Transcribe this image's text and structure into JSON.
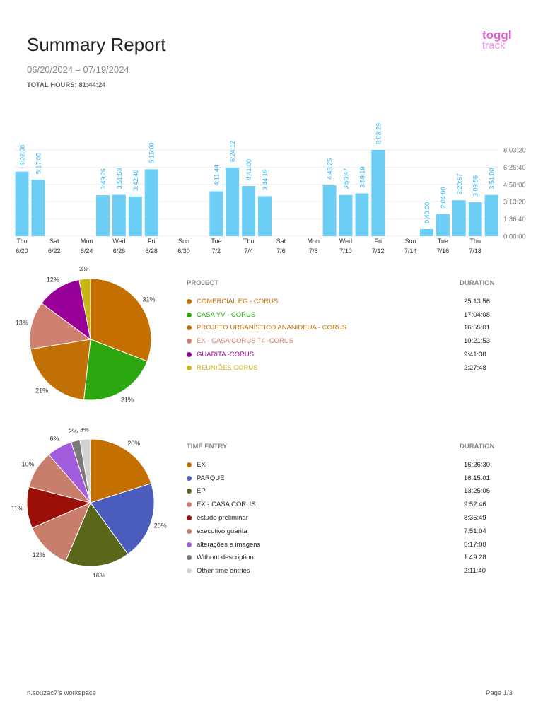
{
  "header": {
    "title": "Summary Report",
    "date_range": "06/20/2024 – 07/19/2024",
    "total_hours": "TOTAL HOURS: 81:44:24",
    "logo": {
      "line1": "toggl",
      "line2": "track"
    }
  },
  "chart_data": [
    {
      "type": "bar",
      "bar_color": "#6ecff6",
      "label_color": "#29b6f6",
      "x": [
        "6/20",
        "6/21",
        "6/22",
        "6/23",
        "6/24",
        "6/25",
        "6/26",
        "6/27",
        "6/28",
        "6/29",
        "6/30",
        "7/1",
        "7/2",
        "7/3",
        "7/4",
        "7/5",
        "7/6",
        "7/7",
        "7/8",
        "7/9",
        "7/10",
        "7/11",
        "7/12",
        "7/13",
        "7/14",
        "7/15",
        "7/16",
        "7/17",
        "7/18",
        "7/19"
      ],
      "values": [
        "6:02:08",
        "5:17:00",
        null,
        null,
        null,
        "3:49:26",
        "3:51:53",
        "3:42:49",
        "6:15:00",
        null,
        null,
        null,
        "4:11:44",
        "6:24:12",
        "4:41:00",
        "3:44:19",
        null,
        null,
        null,
        "4:45:25",
        "3:50:47",
        "3:59:19",
        "8:03:29",
        null,
        null,
        "0:40:00",
        "2:04:00",
        "3:20:57",
        "3:09:56",
        "3:51:00"
      ],
      "x_tick_labels": [
        [
          "Thu",
          "6/20"
        ],
        [
          "Sat",
          "6/22"
        ],
        [
          "Mon",
          "6/24"
        ],
        [
          "Wed",
          "6/26"
        ],
        [
          "Fri",
          "6/28"
        ],
        [
          "Sun",
          "6/30"
        ],
        [
          "Tue",
          "7/2"
        ],
        [
          "Thu",
          "7/4"
        ],
        [
          "Sat",
          "7/6"
        ],
        [
          "Mon",
          "7/8"
        ],
        [
          "Wed",
          "7/10"
        ],
        [
          "Fri",
          "7/12"
        ],
        [
          "Sun",
          "7/14"
        ],
        [
          "Tue",
          "7/16"
        ],
        [
          "Thu",
          "7/18"
        ]
      ],
      "y_ticks": [
        "0:00:00",
        "1:36:40",
        "3:13:20",
        "4:50:00",
        "6:26:40",
        "8:03:20"
      ],
      "ylim": [
        "0:00:00",
        "8:03:20"
      ],
      "grid": true
    },
    {
      "type": "pie",
      "percent_labels": [
        "31%",
        "21%",
        "21%",
        "13%",
        "12%",
        "3%"
      ]
    },
    {
      "type": "pie",
      "percent_labels": [
        "20%",
        "20%",
        "16%",
        "12%",
        "11%",
        "10%",
        "6%",
        "2%",
        "3%"
      ]
    }
  ],
  "projects": {
    "header_name": "PROJECT",
    "header_duration": "DURATION",
    "items": [
      {
        "name": "COMERCIAL EG - CORUS",
        "duration": "25:13:56",
        "color": "#c46f00"
      },
      {
        "name": "CASA YV - CORUS",
        "duration": "17:04:08",
        "color": "#2ca70f"
      },
      {
        "name": "PROJETO URBANÍSTICO ANANIDEUA - CORUS",
        "duration": "16:55:01",
        "color": "#c07005"
      },
      {
        "name": "EX - CASA CORUS T4 -CORUS",
        "duration": "10:21:53",
        "color": "#d0806f"
      },
      {
        "name": "GUARITA -CORUS",
        "duration": "9:41:38",
        "color": "#990099"
      },
      {
        "name": "REUNIÕES CORUS",
        "duration": "2:27:48",
        "color": "#c9b514"
      }
    ]
  },
  "entries": {
    "header_name": "TIME ENTRY",
    "header_duration": "DURATION",
    "items": [
      {
        "name": "EX",
        "duration": "16:26:30",
        "color": "#c47000"
      },
      {
        "name": "PARQUE",
        "duration": "16:15:01",
        "color": "#4a5cbc"
      },
      {
        "name": "EP",
        "duration": "13:25:06",
        "color": "#5a6619"
      },
      {
        "name": "EX - CASA CORUS",
        "duration": "9:52:46",
        "color": "#c97e6c"
      },
      {
        "name": "estudo preliminar",
        "duration": "8:35:49",
        "color": "#9a0f08"
      },
      {
        "name": "executivo guarita",
        "duration": "7:51:04",
        "color": "#c97e6c"
      },
      {
        "name": "alterações e imagens",
        "duration": "5:17:00",
        "color": "#a25ddc"
      },
      {
        "name": "Without description",
        "duration": "1:49:28",
        "color": "#7a7a7a"
      },
      {
        "name": "Other time entries",
        "duration": "2:11:40",
        "color": "#d3d3d3"
      }
    ]
  },
  "footer": {
    "workspace": "n.souzac7's workspace",
    "page": "Page 1/3"
  }
}
